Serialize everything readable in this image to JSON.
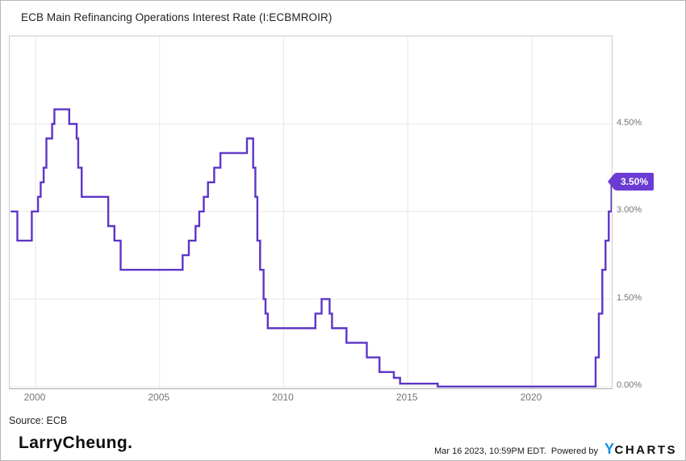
{
  "header": {
    "title": "ECB Main Refinancing Operations Interest Rate (I:ECBMROIR)"
  },
  "chart_data": {
    "type": "line",
    "title": "ECB Main Refinancing Operations Interest Rate (I:ECBMROIR)",
    "unit": "%",
    "grid": true,
    "legend": "none",
    "y_axis_position": "right",
    "x_range": [
      1998.96,
      2023.22
    ],
    "y_range": [
      -0.03,
      6.0
    ],
    "x_ticks": [
      {
        "value": 2000,
        "label": "2000"
      },
      {
        "value": 2005,
        "label": "2005"
      },
      {
        "value": 2010,
        "label": "2010"
      },
      {
        "value": 2015,
        "label": "2015"
      },
      {
        "value": 2020,
        "label": "2020"
      }
    ],
    "y_ticks": [
      {
        "value": 4.5,
        "label": "4.50%"
      },
      {
        "value": 3.0,
        "label": "3.00%"
      },
      {
        "value": 1.5,
        "label": "1.50%"
      },
      {
        "value": 0.0,
        "label": "0.00%"
      }
    ],
    "series": [
      {
        "name": "ECB Main Refinancing Operations Interest Rate",
        "color": "#5d35c7",
        "interpolation": "step-after",
        "points": [
          [
            1999.0,
            3.0
          ],
          [
            1999.27,
            2.5
          ],
          [
            1999.85,
            3.0
          ],
          [
            2000.1,
            3.25
          ],
          [
            2000.21,
            3.5
          ],
          [
            2000.33,
            3.75
          ],
          [
            2000.44,
            4.25
          ],
          [
            2000.67,
            4.5
          ],
          [
            2000.76,
            4.75
          ],
          [
            2001.36,
            4.5
          ],
          [
            2001.66,
            4.25
          ],
          [
            2001.72,
            3.75
          ],
          [
            2001.86,
            3.25
          ],
          [
            2002.93,
            2.75
          ],
          [
            2003.18,
            2.5
          ],
          [
            2003.43,
            2.0
          ],
          [
            2005.93,
            2.25
          ],
          [
            2006.18,
            2.5
          ],
          [
            2006.45,
            2.75
          ],
          [
            2006.6,
            3.0
          ],
          [
            2006.78,
            3.25
          ],
          [
            2006.95,
            3.5
          ],
          [
            2007.2,
            3.75
          ],
          [
            2007.45,
            4.0
          ],
          [
            2008.52,
            4.25
          ],
          [
            2008.77,
            3.75
          ],
          [
            2008.86,
            3.25
          ],
          [
            2008.94,
            2.5
          ],
          [
            2009.05,
            2.0
          ],
          [
            2009.19,
            1.5
          ],
          [
            2009.27,
            1.25
          ],
          [
            2009.36,
            1.0
          ],
          [
            2011.28,
            1.25
          ],
          [
            2011.53,
            1.5
          ],
          [
            2011.85,
            1.25
          ],
          [
            2011.95,
            1.0
          ],
          [
            2012.53,
            0.75
          ],
          [
            2013.35,
            0.5
          ],
          [
            2013.86,
            0.25
          ],
          [
            2014.44,
            0.15
          ],
          [
            2014.69,
            0.05
          ],
          [
            2016.21,
            0.0
          ],
          [
            2022.57,
            0.5
          ],
          [
            2022.7,
            1.25
          ],
          [
            2022.84,
            2.0
          ],
          [
            2022.97,
            2.5
          ],
          [
            2023.1,
            3.0
          ],
          [
            2023.21,
            3.5
          ]
        ]
      }
    ],
    "last_value": 3.5,
    "last_value_label": "3.50%",
    "accent_color": "#6b3cd3",
    "grid_color": "#e8e8e8"
  },
  "footer": {
    "source": "Source: ECB",
    "brand": "LarryCheung.",
    "timestamp": "Mar 16 2023, 10:59PM EDT.",
    "powered_by": "Powered by",
    "logo_y": "Y",
    "logo_charts": "CHARTS",
    "logo_blue": "#0b93e5"
  }
}
